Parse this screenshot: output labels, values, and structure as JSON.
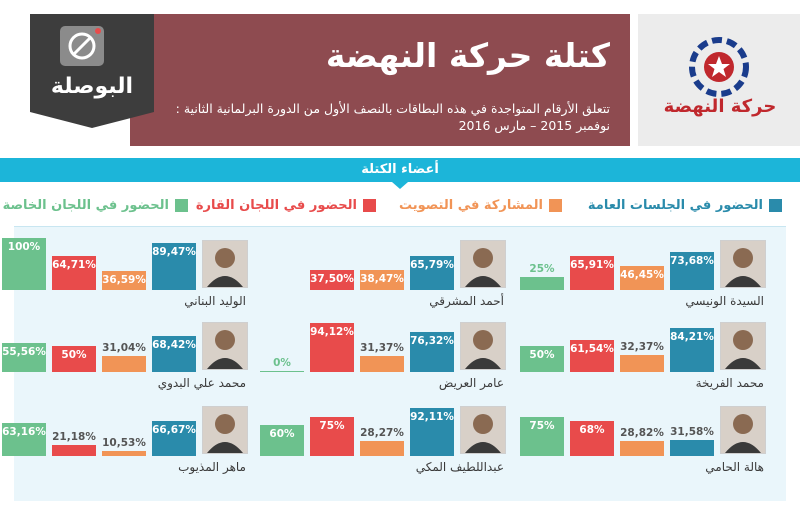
{
  "header": {
    "title": "كتلة حركة النهضة",
    "subtitle_line1": "تتعلق الأرقام المتواجدة في هذه البطاقات بالنصف الأول من الدورة البرلمانية الثانية :",
    "subtitle_line2": "نوفمبر 2015 – مارس 2016",
    "bosla_logo_text": "البوصلة",
    "nahdha_logo_text": "حركة النهضة"
  },
  "members_label": "أعضاء الكتلة",
  "colors": {
    "plenary": "#2a8bab",
    "voting": "#f19456",
    "permanent": "#e84b4b",
    "special": "#6cc18d",
    "banner": "#8e4b50",
    "accent": "#1cb5d9"
  },
  "legend": {
    "plenary": "الحضور في الجلسات العامة",
    "voting": "المشاركة في التصويت",
    "permanent": "الحضور في اللجان القارة",
    "special": "الحضور في اللجان الخاصة"
  },
  "chart_data": {
    "type": "bar",
    "series_keys": [
      "plenary",
      "voting",
      "permanent",
      "special"
    ],
    "ylim": [
      0,
      100
    ],
    "members": [
      {
        "name": "السيدة الونيسي",
        "plenary": "73,68%",
        "voting": "46,45%",
        "permanent": "65,91%",
        "special": "25%"
      },
      {
        "name": "أحمد المشرقي",
        "plenary": "65,79%",
        "voting": "38,47%",
        "permanent": "37,50%",
        "special": null
      },
      {
        "name": "الوليد البناني",
        "plenary": "89,47%",
        "voting": "36,59%",
        "permanent": "64,71%",
        "special": "100%"
      },
      {
        "name": "محمد الفريخة",
        "plenary": "84,21%",
        "voting": "32,37%",
        "permanent": "61,54%",
        "special": "50%"
      },
      {
        "name": "عامر العريض",
        "plenary": "76,32%",
        "voting": "31,37%",
        "permanent": "94,12%",
        "special": "0%"
      },
      {
        "name": "محمد علي البدوي",
        "plenary": "68,42%",
        "voting": "31,04%",
        "permanent": "50%",
        "special": "55,56%"
      },
      {
        "name": "هالة الحامي",
        "plenary": "31,58%",
        "voting": "28,82%",
        "permanent": "68%",
        "special": "75%"
      },
      {
        "name": "عبداللطيف المكي",
        "plenary": "92,11%",
        "voting": "28,27%",
        "permanent": "75%",
        "special": "60%"
      },
      {
        "name": "ماهر المذيوب",
        "plenary": "66,67%",
        "voting": "10,53%",
        "permanent": "21,18%",
        "special": "63,16%"
      }
    ]
  }
}
